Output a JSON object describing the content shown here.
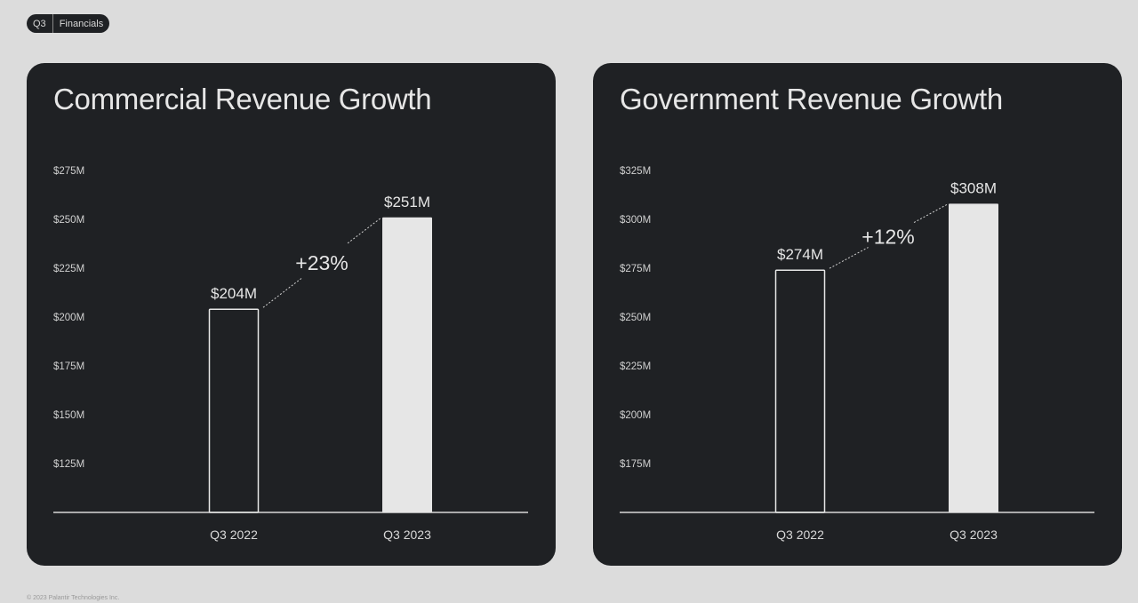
{
  "header": {
    "badge_left": "Q3",
    "badge_right": "Financials"
  },
  "footer": "© 2023 Palantir Technologies Inc.",
  "colors": {
    "background": "#dcdcdc",
    "card": "#1f2124",
    "bar_highlight": "#e6e6e6",
    "text": "#e6e6e6"
  },
  "chart_data": [
    {
      "type": "bar",
      "title": "Commercial Revenue Growth",
      "categories": [
        "Q3 2022",
        "Q3 2023"
      ],
      "values": [
        204,
        251
      ],
      "value_labels": [
        "$204M",
        "$251M"
      ],
      "growth_label": "+23%",
      "ylim": [
        100,
        275
      ],
      "yticks": [
        125,
        150,
        175,
        200,
        225,
        250,
        275
      ],
      "ytick_labels": [
        "$125M",
        "$150M",
        "$175M",
        "$200M",
        "$225M",
        "$250M",
        "$275M"
      ],
      "xlabel": "",
      "ylabel": "",
      "grid": false
    },
    {
      "type": "bar",
      "title": "Government Revenue Growth",
      "categories": [
        "Q3 2022",
        "Q3 2023"
      ],
      "values": [
        274,
        308
      ],
      "value_labels": [
        "$274M",
        "$308M"
      ],
      "growth_label": "+12%",
      "ylim": [
        150,
        325
      ],
      "yticks": [
        175,
        200,
        225,
        250,
        275,
        300,
        325
      ],
      "ytick_labels": [
        "$175M",
        "$200M",
        "$225M",
        "$250M",
        "$275M",
        "$300M",
        "$325M"
      ],
      "xlabel": "",
      "ylabel": "",
      "grid": false
    }
  ]
}
